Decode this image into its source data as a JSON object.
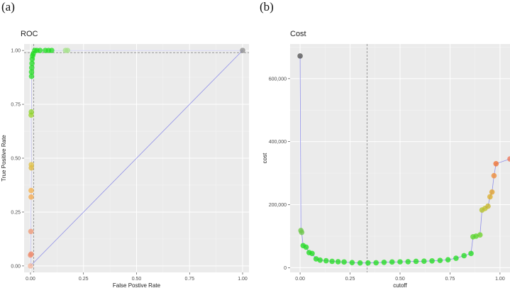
{
  "panels": {
    "a": {
      "letter": "(a)"
    },
    "b": {
      "letter": "(b)"
    }
  },
  "chart_data": [
    {
      "type": "scatter",
      "title": "ROC",
      "xlabel": "False Postive Rate",
      "ylabel": "True Positive Rate",
      "xlim": [
        -0.03,
        1.03
      ],
      "ylim": [
        -0.03,
        1.03
      ],
      "xticks": [
        "0.00",
        "0.25",
        "0.50",
        "0.75",
        "1.00"
      ],
      "yticks": [
        "0.00",
        "0.25",
        "0.50",
        "0.75",
        "1.00"
      ],
      "grid": true,
      "diagonal": {
        "x": [
          0,
          1
        ],
        "y": [
          0,
          1
        ],
        "color": "#8f8fe8"
      },
      "reference_lines": {
        "vline_x": 0.015,
        "hline_y": 0.99
      },
      "points": [
        {
          "x": 0.0,
          "y": 0.0,
          "color": "#f4b49a"
        },
        {
          "x": 0.003,
          "y": 0.055,
          "color": "#f08a6a"
        },
        {
          "x": 0.0,
          "y": 0.05,
          "color": "#ee8d70"
        },
        {
          "x": 0.002,
          "y": 0.16,
          "color": "#ef9670"
        },
        {
          "x": 0.003,
          "y": 0.32,
          "color": "#f5a84a"
        },
        {
          "x": 0.003,
          "y": 0.35,
          "color": "#f5b04a"
        },
        {
          "x": 0.004,
          "y": 0.455,
          "color": "#ddb63a"
        },
        {
          "x": 0.004,
          "y": 0.47,
          "color": "#e0c040"
        },
        {
          "x": 0.003,
          "y": 0.7,
          "color": "#9bd42a"
        },
        {
          "x": 0.004,
          "y": 0.715,
          "color": "#8cd42a"
        },
        {
          "x": 0.005,
          "y": 0.88,
          "color": "#22dd22"
        },
        {
          "x": 0.005,
          "y": 0.9,
          "color": "#22dd22"
        },
        {
          "x": 0.006,
          "y": 0.92,
          "color": "#22dd22"
        },
        {
          "x": 0.007,
          "y": 0.94,
          "color": "#22dd22"
        },
        {
          "x": 0.008,
          "y": 0.96,
          "color": "#22dd22"
        },
        {
          "x": 0.01,
          "y": 0.975,
          "color": "#22dd22"
        },
        {
          "x": 0.013,
          "y": 0.985,
          "color": "#22dd22"
        },
        {
          "x": 0.02,
          "y": 1.0,
          "color": "#22dd22"
        },
        {
          "x": 0.03,
          "y": 1.0,
          "color": "#22dd22"
        },
        {
          "x": 0.045,
          "y": 1.0,
          "color": "#22dd22"
        },
        {
          "x": 0.07,
          "y": 1.0,
          "color": "#22dd22"
        },
        {
          "x": 0.085,
          "y": 1.0,
          "color": "#22dd22"
        },
        {
          "x": 0.1,
          "y": 1.0,
          "color": "#22dd22"
        },
        {
          "x": 0.165,
          "y": 1.0,
          "color": "#a6e28a"
        },
        {
          "x": 0.175,
          "y": 1.0,
          "color": "#a6e28a"
        },
        {
          "x": 1.0,
          "y": 1.0,
          "color": "#8a8a8a"
        }
      ]
    },
    {
      "type": "scatter",
      "title": "Cost",
      "xlabel": "cutoff",
      "ylabel": "cost",
      "xlim": [
        -0.05,
        1.05
      ],
      "ylim": [
        -15000,
        710000
      ],
      "xticks": [
        "0.00",
        "0.25",
        "0.50",
        "0.75",
        "1.00"
      ],
      "yticks": [
        "0",
        "200,000",
        "400,000",
        "600,000"
      ],
      "grid": true,
      "reference_lines": {
        "vline_x": 0.335
      },
      "line_color": "#8f8fe8",
      "points": [
        {
          "x": 0.0,
          "y": 672000,
          "color": "#555555"
        },
        {
          "x": 0.004,
          "y": 118000,
          "color": "#6ec84a"
        },
        {
          "x": 0.008,
          "y": 112000,
          "color": "#6ec84a"
        },
        {
          "x": 0.015,
          "y": 70000,
          "color": "#22dd22"
        },
        {
          "x": 0.03,
          "y": 65000,
          "color": "#22dd22"
        },
        {
          "x": 0.045,
          "y": 48000,
          "color": "#22dd22"
        },
        {
          "x": 0.06,
          "y": 45000,
          "color": "#22dd22"
        },
        {
          "x": 0.08,
          "y": 28000,
          "color": "#22dd22"
        },
        {
          "x": 0.1,
          "y": 24000,
          "color": "#22dd22"
        },
        {
          "x": 0.13,
          "y": 22000,
          "color": "#22dd22"
        },
        {
          "x": 0.16,
          "y": 20000,
          "color": "#22dd22"
        },
        {
          "x": 0.19,
          "y": 19000,
          "color": "#22dd22"
        },
        {
          "x": 0.22,
          "y": 18000,
          "color": "#22dd22"
        },
        {
          "x": 0.26,
          "y": 16000,
          "color": "#22dd22"
        },
        {
          "x": 0.3,
          "y": 15000,
          "color": "#22dd22"
        },
        {
          "x": 0.34,
          "y": 15000,
          "color": "#22dd22"
        },
        {
          "x": 0.38,
          "y": 15500,
          "color": "#22dd22"
        },
        {
          "x": 0.42,
          "y": 17000,
          "color": "#22dd22"
        },
        {
          "x": 0.46,
          "y": 18000,
          "color": "#22dd22"
        },
        {
          "x": 0.5,
          "y": 18500,
          "color": "#22dd22"
        },
        {
          "x": 0.54,
          "y": 19000,
          "color": "#22dd22"
        },
        {
          "x": 0.58,
          "y": 20000,
          "color": "#22dd22"
        },
        {
          "x": 0.62,
          "y": 20500,
          "color": "#22dd22"
        },
        {
          "x": 0.66,
          "y": 21500,
          "color": "#22dd22"
        },
        {
          "x": 0.7,
          "y": 23000,
          "color": "#22dd22"
        },
        {
          "x": 0.74,
          "y": 25000,
          "color": "#22dd22"
        },
        {
          "x": 0.78,
          "y": 30000,
          "color": "#22dd22"
        },
        {
          "x": 0.82,
          "y": 38000,
          "color": "#22dd22"
        },
        {
          "x": 0.855,
          "y": 45000,
          "color": "#22dd22"
        },
        {
          "x": 0.865,
          "y": 98000,
          "color": "#5ad62a"
        },
        {
          "x": 0.88,
          "y": 100000,
          "color": "#5ad62a"
        },
        {
          "x": 0.9,
          "y": 104000,
          "color": "#6ed42a"
        },
        {
          "x": 0.91,
          "y": 183000,
          "color": "#b4c32a"
        },
        {
          "x": 0.925,
          "y": 188000,
          "color": "#c0c02a"
        },
        {
          "x": 0.94,
          "y": 195000,
          "color": "#c8b62a"
        },
        {
          "x": 0.95,
          "y": 225000,
          "color": "#dcae2a"
        },
        {
          "x": 0.96,
          "y": 240000,
          "color": "#e2a02a"
        },
        {
          "x": 0.97,
          "y": 292000,
          "color": "#ee8a36"
        },
        {
          "x": 0.98,
          "y": 330000,
          "color": "#f07030"
        },
        {
          "x": 1.05,
          "y": 345000,
          "color": "#f07a5a"
        }
      ]
    }
  ]
}
